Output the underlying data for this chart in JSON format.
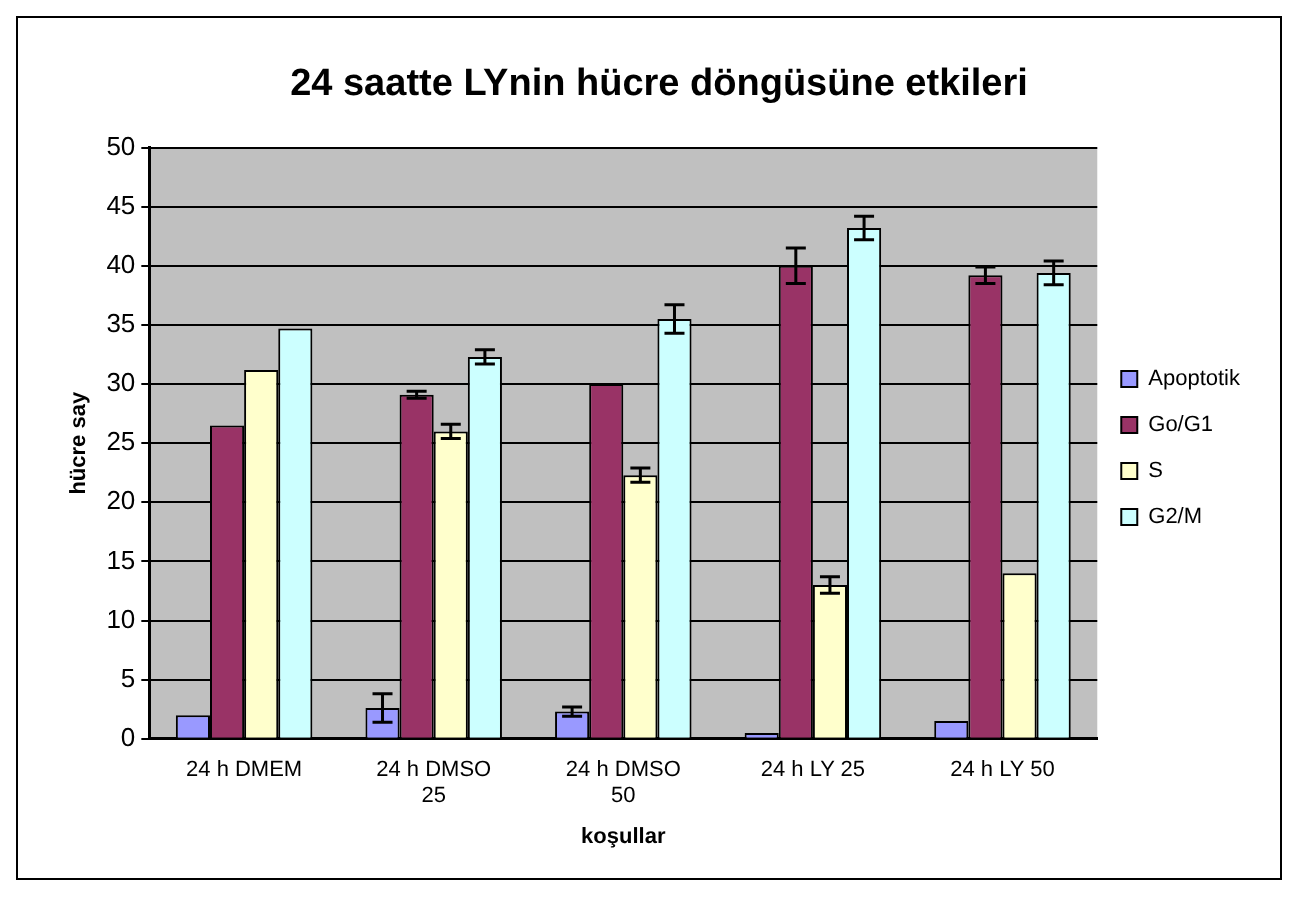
{
  "chart_data": {
    "type": "bar",
    "title": "24 saatte LYnin hücre döngüsüne etkileri",
    "xlabel": "koşullar",
    "ylabel": "hücre say",
    "categories": [
      "24 h DMEM",
      "24 h DMSO 25",
      "24 h DMSO 50",
      "24 h LY 25",
      "24 h LY 50"
    ],
    "series": [
      {
        "name": "Apoptotik",
        "color": "#9999ff",
        "values": [
          2,
          2.6,
          2.3,
          0.5,
          1.5
        ],
        "errors": [
          null,
          1.2,
          0.4,
          null,
          null
        ]
      },
      {
        "name": "Go/G1",
        "color": "#993366",
        "values": [
          26.5,
          29.1,
          30,
          40,
          39.2
        ],
        "errors": [
          null,
          0.3,
          null,
          1.5,
          0.7
        ]
      },
      {
        "name": "S",
        "color": "#ffffcc",
        "values": [
          31.2,
          26,
          22.3,
          13,
          14
        ],
        "errors": [
          null,
          0.6,
          0.6,
          0.7,
          null
        ]
      },
      {
        "name": "G2/M",
        "color": "#ccffff",
        "values": [
          34.7,
          32.3,
          35.5,
          43.2,
          39.4
        ],
        "errors": [
          null,
          0.6,
          1.2,
          1,
          1
        ]
      }
    ],
    "ylim": [
      0,
      50
    ],
    "yticks": [
      0,
      5,
      10,
      15,
      20,
      25,
      30,
      35,
      40,
      45,
      50
    ],
    "grid": "y",
    "legend": "right"
  }
}
